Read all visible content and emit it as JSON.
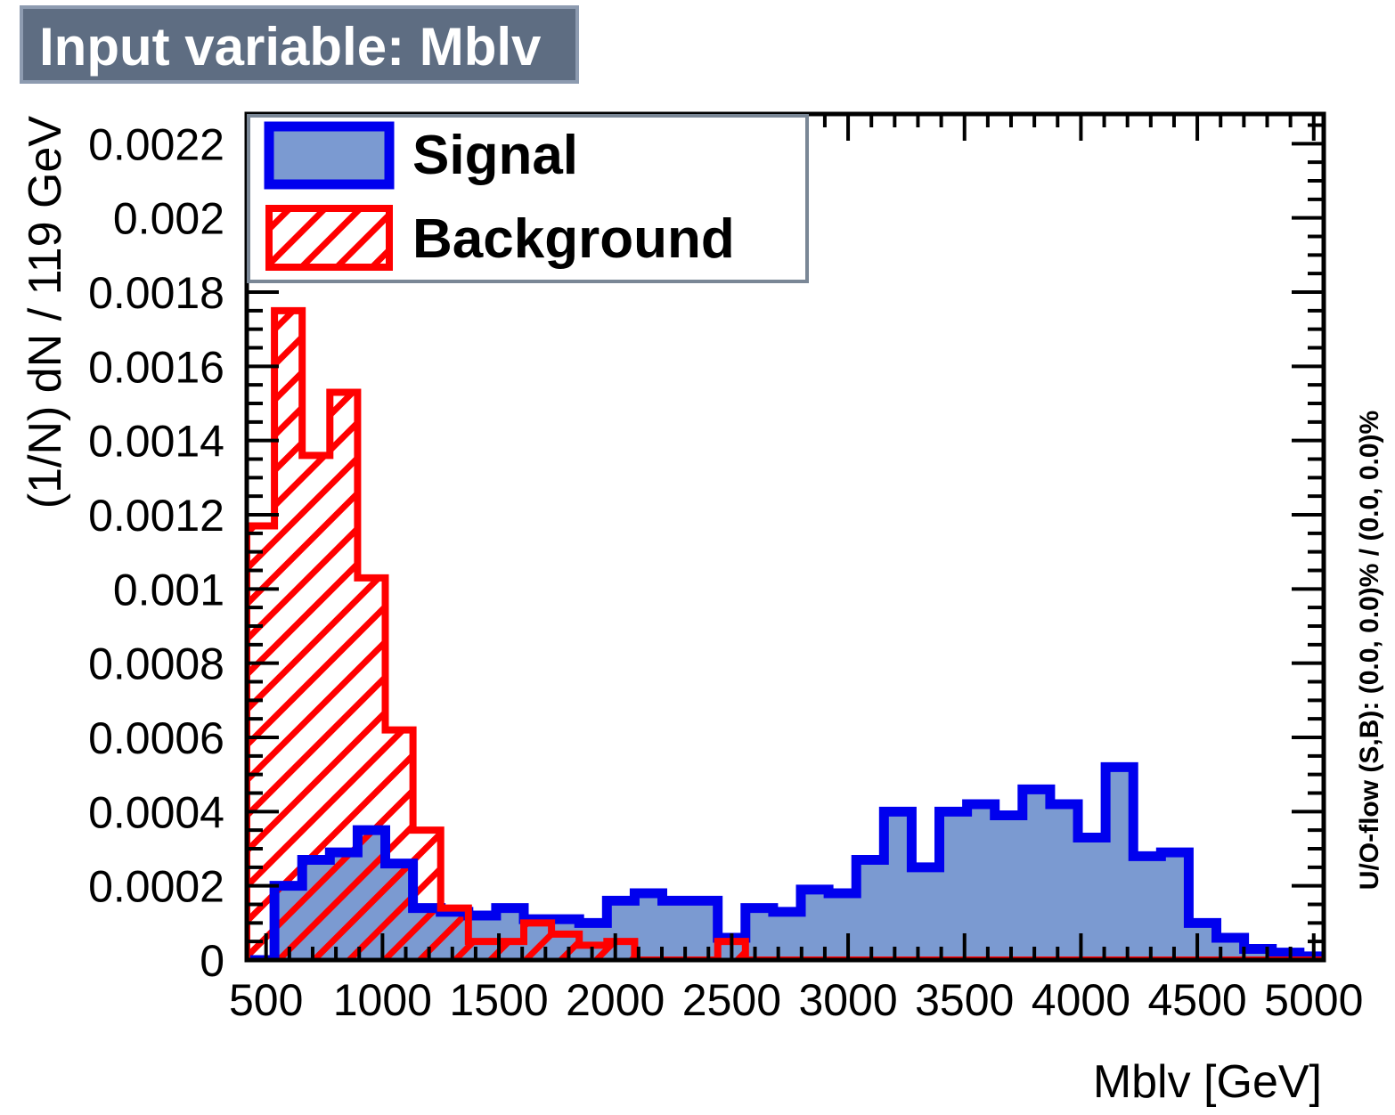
{
  "title": "Input variable: Mblv",
  "colors": {
    "title_bg": "#5e6d82",
    "signal_line": "#0000ee",
    "signal_fill": "#7b9ad1",
    "background_line": "#ff0000",
    "legend_border": "#7a8796"
  },
  "chart_data": {
    "type": "histogram",
    "title": "Input variable: Mblv",
    "xlabel": "Mblv  [GeV]",
    "ylabel": "(1/N) dN / 119 GeV",
    "side_note": "U/O-flow (S,B): (0.0, 0.0)% / (0.0, 0.0)%",
    "xlim": [
      417,
      5043
    ],
    "ylim": [
      0,
      0.00228
    ],
    "x_ticks": [
      "500",
      "1000",
      "1500",
      "2000",
      "2500",
      "3000",
      "3500",
      "4000",
      "4500",
      "5000"
    ],
    "x_tick_values": [
      500,
      1000,
      1500,
      2000,
      2500,
      3000,
      3500,
      4000,
      4500,
      5000
    ],
    "y_ticks": [
      "0",
      "0.0002",
      "0.0004",
      "0.0006",
      "0.0008",
      "0.001",
      "0.0012",
      "0.0014",
      "0.0016",
      "0.0018",
      "0.002",
      "0.0022"
    ],
    "y_tick_values": [
      0,
      0.0002,
      0.0004,
      0.0006,
      0.0008,
      0.001,
      0.0012,
      0.0014,
      0.0016,
      0.0018,
      0.002,
      0.0022
    ],
    "bin_edges": [
      417,
      536,
      655,
      774,
      893,
      1012,
      1131,
      1250,
      1369,
      1488,
      1607,
      1726,
      1845,
      1964,
      2083,
      2202,
      2321,
      2440,
      2559,
      2678,
      2797,
      2916,
      3035,
      3154,
      3273,
      3392,
      3511,
      3630,
      3749,
      3868,
      3987,
      4106,
      4225,
      4344,
      4463,
      4582,
      4701,
      4820,
      4939,
      5058
    ],
    "legend": [
      "Signal",
      "Background"
    ],
    "legend_position": "top-left",
    "series": [
      {
        "name": "Signal",
        "style": "filled",
        "values": [
          0.0,
          0.0002,
          0.00027,
          0.00029,
          0.00035,
          0.00026,
          0.00014,
          0.00013,
          0.00012,
          0.00014,
          0.00011,
          0.00011,
          0.0001,
          0.00016,
          0.00018,
          0.00016,
          0.00016,
          6e-05,
          0.00014,
          0.00013,
          0.00019,
          0.00018,
          0.00027,
          0.0004,
          0.00025,
          0.0004,
          0.00042,
          0.00039,
          0.00046,
          0.00042,
          0.00033,
          0.00052,
          0.00028,
          0.00029,
          0.0001,
          6e-05,
          3e-05,
          2e-05,
          1e-05
        ]
      },
      {
        "name": "Background",
        "style": "hatched",
        "values": [
          0.00117,
          0.00175,
          0.00136,
          0.00153,
          0.00103,
          0.00062,
          0.00035,
          0.00014,
          5e-05,
          5e-05,
          0.0001,
          7e-05,
          4e-05,
          5e-05,
          0.0,
          0.0,
          0.0,
          5e-05,
          0.0,
          0.0,
          0.0,
          0.0,
          0.0,
          0.0,
          0.0,
          0.0,
          0.0,
          0.0,
          0.0,
          0.0,
          0.0,
          0.0,
          0.0,
          0.0,
          0.0,
          0.0,
          0.0,
          0.0,
          0.0
        ]
      }
    ]
  }
}
